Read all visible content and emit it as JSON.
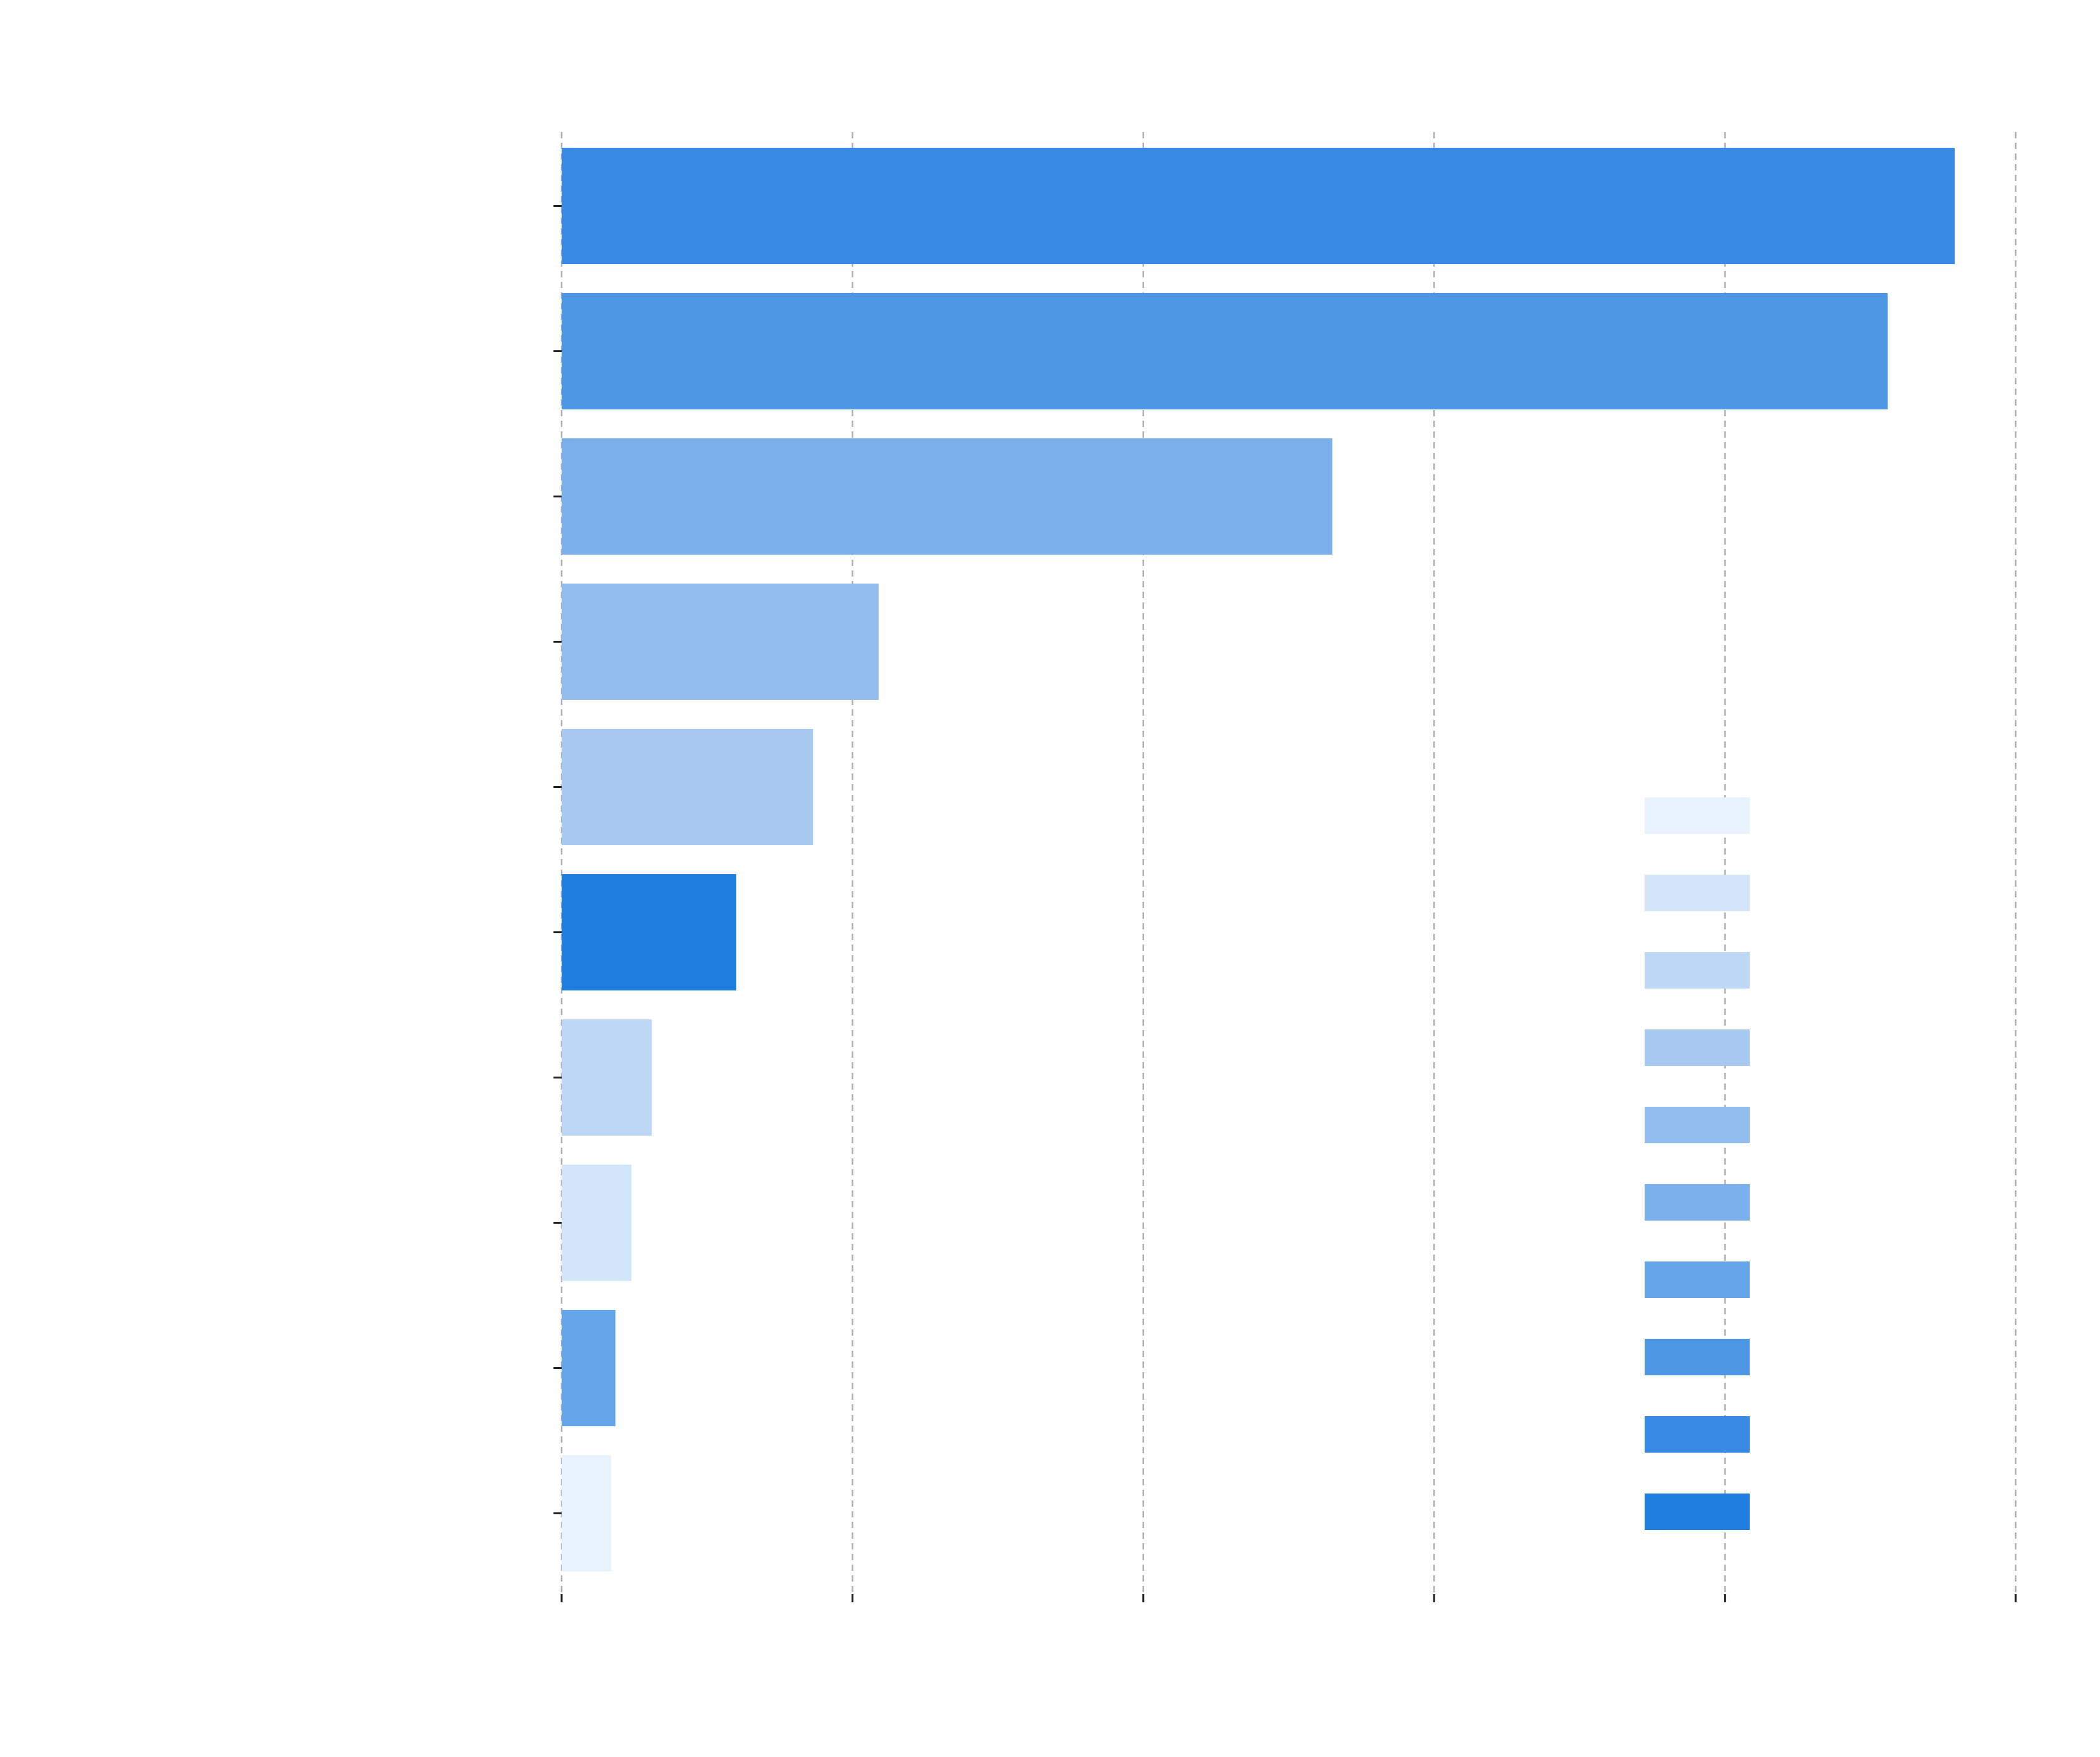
{
  "chart_data": {
    "type": "bar",
    "orientation": "horizontal",
    "title": "",
    "xlabel": "",
    "ylabel": "",
    "categories": [
      "",
      "",
      "",
      "",
      "",
      "",
      "",
      "",
      "",
      ""
    ],
    "values": [
      95.8,
      91.2,
      53.0,
      21.8,
      17.3,
      12.0,
      6.2,
      4.8,
      3.7,
      3.4
    ],
    "bar_colors": [
      "#3889e3",
      "#4c96e4",
      "#7ab0eb",
      "#92bdee",
      "#a8caf1",
      "#1f7ddf",
      "#bdd7f5",
      "#d3e5f9",
      "#64a4e9",
      "#e8f2fc"
    ],
    "xlim": [
      0,
      100
    ],
    "xticks": [
      0,
      20,
      40,
      60,
      80,
      100
    ],
    "xtick_labels": [
      "",
      "",
      "",
      "",
      "",
      ""
    ],
    "grid": true,
    "grid_style": "dashed-vertical",
    "legend": {
      "placement": "lower-right",
      "entries": [
        {
          "name": "",
          "color": "#e8f2fc"
        },
        {
          "name": "",
          "color": "#d3e5f9"
        },
        {
          "name": "",
          "color": "#bdd7f5"
        },
        {
          "name": "",
          "color": "#a8caf1"
        },
        {
          "name": "",
          "color": "#92bdee"
        },
        {
          "name": "",
          "color": "#7ab0eb"
        },
        {
          "name": "",
          "color": "#64a4e9"
        },
        {
          "name": "",
          "color": "#4c96e4"
        },
        {
          "name": "",
          "color": "#3889e3"
        },
        {
          "name": "",
          "color": "#1f7ddf"
        }
      ]
    }
  }
}
